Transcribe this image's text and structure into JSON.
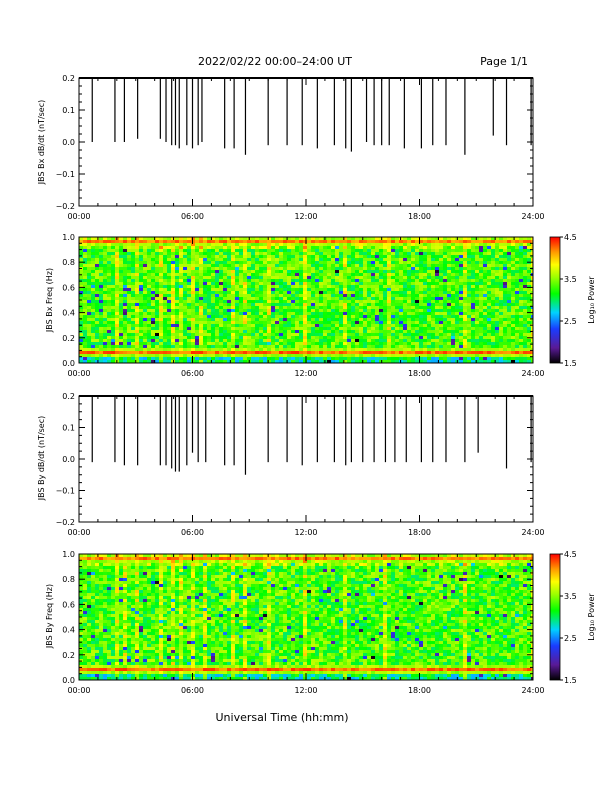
{
  "header": {
    "title": "2022/02/22  00:00–24:00 UT",
    "page": "Page 1/1"
  },
  "footer": {
    "xlabel": "Universal Time (hh:mm)"
  },
  "colors": {
    "line": "#000000",
    "colorbar": [
      "#000000",
      "#5a1a96",
      "#1a3cff",
      "#00d2ff",
      "#00ff00",
      "#9cff00",
      "#ffff00",
      "#ff9a00",
      "#ff0000"
    ]
  },
  "chart_data": [
    {
      "type": "line",
      "ylabel": "JBS Bx dB/dt (nT/sec)",
      "xticks": [
        "00:00",
        "06:00",
        "12:00",
        "18:00",
        "24:00"
      ],
      "yticks": [
        "0.2",
        "0.1",
        "0.0",
        "−0.1",
        "−0.2"
      ],
      "xlim": [
        0,
        24
      ],
      "ylim": [
        -0.2,
        0.2
      ],
      "baseline": 0.2,
      "spikes": [
        {
          "t": 0.7,
          "y": 0.0
        },
        {
          "t": 1.9,
          "y": 0.0
        },
        {
          "t": 2.4,
          "y": 0.0
        },
        {
          "t": 3.1,
          "y": 0.01
        },
        {
          "t": 4.3,
          "y": 0.01
        },
        {
          "t": 4.6,
          "y": 0.0
        },
        {
          "t": 4.9,
          "y": -0.01
        },
        {
          "t": 5.1,
          "y": -0.01
        },
        {
          "t": 5.3,
          "y": -0.02
        },
        {
          "t": 5.7,
          "y": -0.01
        },
        {
          "t": 6.0,
          "y": -0.02
        },
        {
          "t": 6.3,
          "y": -0.01
        },
        {
          "t": 6.5,
          "y": 0.0
        },
        {
          "t": 7.7,
          "y": -0.02
        },
        {
          "t": 8.2,
          "y": -0.02
        },
        {
          "t": 8.8,
          "y": -0.04
        },
        {
          "t": 10.0,
          "y": -0.01
        },
        {
          "t": 11.0,
          "y": -0.01
        },
        {
          "t": 11.8,
          "y": -0.01
        },
        {
          "t": 12.6,
          "y": -0.02
        },
        {
          "t": 13.5,
          "y": -0.01
        },
        {
          "t": 14.1,
          "y": -0.02
        },
        {
          "t": 14.4,
          "y": -0.03
        },
        {
          "t": 15.2,
          "y": 0.0
        },
        {
          "t": 15.6,
          "y": -0.01
        },
        {
          "t": 16.0,
          "y": -0.01
        },
        {
          "t": 16.4,
          "y": -0.01
        },
        {
          "t": 17.2,
          "y": -0.02
        },
        {
          "t": 18.1,
          "y": -0.02
        },
        {
          "t": 18.7,
          "y": -0.01
        },
        {
          "t": 19.4,
          "y": -0.01
        },
        {
          "t": 20.4,
          "y": -0.04
        },
        {
          "t": 21.9,
          "y": 0.02
        },
        {
          "t": 22.6,
          "y": -0.01
        },
        {
          "t": 23.9,
          "y": -0.01
        }
      ]
    },
    {
      "type": "heatmap",
      "ylabel": "JBS Bx Freq (Hz)",
      "xticks": [
        "00:00",
        "06:00",
        "12:00",
        "18:00",
        "24:00"
      ],
      "yticks": [
        "1.0",
        "0.8",
        "0.6",
        "0.4",
        "0.2",
        "0.0"
      ],
      "xlim": [
        0,
        24
      ],
      "ylim": [
        0,
        1
      ],
      "z_range": [
        1.5,
        4.5
      ],
      "bands": [
        {
          "freq_hz": 0.08,
          "value": 4.4
        },
        {
          "freq_hz": 0.97,
          "value": 4.1
        }
      ],
      "background_level": 3.3,
      "vertical_streak_hours": [
        1.9,
        3.1,
        4.3,
        4.9,
        5.3,
        6.0,
        6.5,
        8.2,
        8.8,
        10.0,
        11.8,
        14.1,
        16.4,
        20.4,
        23.9
      ],
      "colorbar": {
        "label": "Log₁₀ Power",
        "ticks": [
          "4.5",
          "3.5",
          "2.5",
          "1.5"
        ]
      }
    },
    {
      "type": "line",
      "ylabel": "JBS By dB/dt (nT/sec)",
      "xticks": [
        "00:00",
        "06:00",
        "12:00",
        "18:00",
        "24:00"
      ],
      "yticks": [
        "0.2",
        "0.1",
        "0.0",
        "−0.1",
        "−0.2"
      ],
      "xlim": [
        0,
        24
      ],
      "ylim": [
        -0.2,
        0.2
      ],
      "baseline": 0.2,
      "spikes": [
        {
          "t": 0.7,
          "y": -0.01
        },
        {
          "t": 1.9,
          "y": -0.01
        },
        {
          "t": 2.4,
          "y": -0.02
        },
        {
          "t": 3.1,
          "y": -0.02
        },
        {
          "t": 4.3,
          "y": -0.02
        },
        {
          "t": 4.6,
          "y": -0.02
        },
        {
          "t": 4.9,
          "y": -0.03
        },
        {
          "t": 5.1,
          "y": -0.04
        },
        {
          "t": 5.3,
          "y": -0.04
        },
        {
          "t": 5.7,
          "y": -0.02
        },
        {
          "t": 6.0,
          "y": 0.02
        },
        {
          "t": 6.3,
          "y": -0.01
        },
        {
          "t": 6.7,
          "y": -0.01
        },
        {
          "t": 7.7,
          "y": -0.02
        },
        {
          "t": 8.2,
          "y": -0.02
        },
        {
          "t": 8.8,
          "y": -0.05
        },
        {
          "t": 10.0,
          "y": -0.01
        },
        {
          "t": 11.0,
          "y": -0.01
        },
        {
          "t": 11.8,
          "y": -0.02
        },
        {
          "t": 12.6,
          "y": -0.01
        },
        {
          "t": 13.5,
          "y": -0.01
        },
        {
          "t": 14.1,
          "y": -0.02
        },
        {
          "t": 14.4,
          "y": -0.01
        },
        {
          "t": 15.0,
          "y": -0.01
        },
        {
          "t": 15.6,
          "y": -0.01
        },
        {
          "t": 16.2,
          "y": -0.01
        },
        {
          "t": 16.7,
          "y": -0.01
        },
        {
          "t": 17.3,
          "y": -0.01
        },
        {
          "t": 18.1,
          "y": -0.01
        },
        {
          "t": 18.7,
          "y": -0.01
        },
        {
          "t": 19.4,
          "y": -0.01
        },
        {
          "t": 20.4,
          "y": -0.01
        },
        {
          "t": 21.1,
          "y": 0.02
        },
        {
          "t": 22.6,
          "y": -0.03
        },
        {
          "t": 23.9,
          "y": -0.01
        }
      ]
    },
    {
      "type": "heatmap",
      "ylabel": "JBS By Freq (Hz)",
      "xticks": [
        "00:00",
        "06:00",
        "12:00",
        "18:00",
        "24:00"
      ],
      "yticks": [
        "1.0",
        "0.8",
        "0.6",
        "0.4",
        "0.2",
        "0.0"
      ],
      "xlim": [
        0,
        24
      ],
      "ylim": [
        0,
        1
      ],
      "z_range": [
        1.5,
        4.5
      ],
      "bands": [
        {
          "freq_hz": 0.08,
          "value": 4.4
        },
        {
          "freq_hz": 0.97,
          "value": 4.1
        }
      ],
      "background_level": 3.3,
      "vertical_streak_hours": [
        1.9,
        2.4,
        3.1,
        4.3,
        4.9,
        5.3,
        6.0,
        6.7,
        8.2,
        8.8,
        10.0,
        11.8,
        14.1,
        16.2,
        20.4,
        23.9
      ],
      "colorbar": {
        "label": "Log₁₀ Power",
        "ticks": [
          "4.5",
          "3.5",
          "2.5",
          "1.5"
        ]
      }
    }
  ]
}
